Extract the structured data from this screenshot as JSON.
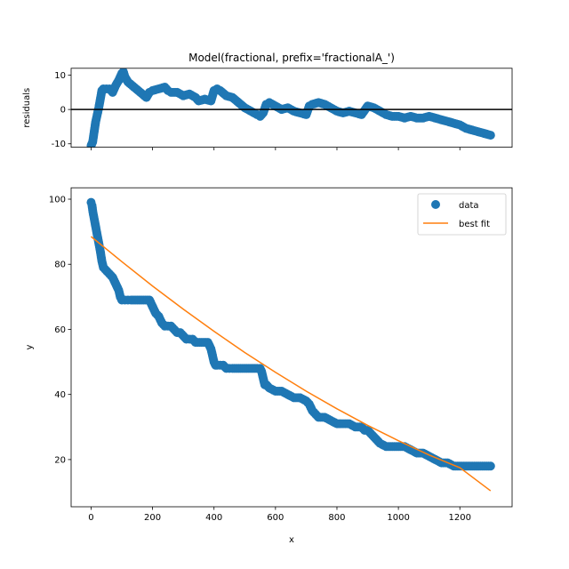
{
  "chart_data": [
    {
      "type": "scatter",
      "panel": "residuals",
      "title": "Model(fractional, prefix='fractionalA_')",
      "xlabel": "",
      "ylabel": "residuals",
      "xlim": [
        -65,
        1370
      ],
      "ylim": [
        -11,
        12
      ],
      "yticks": [
        -10,
        0,
        10
      ],
      "xticks": [
        0,
        200,
        400,
        600,
        800,
        1000,
        1200
      ],
      "show_xtick_labels": false,
      "grid": false,
      "zero_line": 0,
      "series": [
        {
          "color": "#1f77b4",
          "x": [
            0,
            5,
            10,
            15,
            20,
            25,
            30,
            35,
            40,
            50,
            60,
            70,
            80,
            90,
            100,
            105,
            110,
            120,
            140,
            160,
            180,
            190,
            200,
            220,
            240,
            250,
            260,
            280,
            300,
            320,
            340,
            350,
            370,
            390,
            400,
            410,
            420,
            440,
            460,
            480,
            500,
            520,
            540,
            550,
            560,
            570,
            580,
            600,
            620,
            640,
            660,
            680,
            700,
            710,
            720,
            740,
            760,
            780,
            800,
            820,
            840,
            860,
            880,
            900,
            920,
            940,
            960,
            980,
            1000,
            1020,
            1040,
            1060,
            1080,
            1100,
            1120,
            1140,
            1160,
            1180,
            1200,
            1220,
            1240,
            1260,
            1280,
            1300
          ],
          "y": [
            -10.5,
            -9.5,
            -6.5,
            -3.5,
            -1.5,
            0.5,
            3,
            5.5,
            6,
            6,
            6,
            5,
            7,
            8.5,
            10.5,
            11,
            9.5,
            8,
            6.5,
            5,
            3.5,
            5,
            5.5,
            6,
            6.5,
            5.5,
            5,
            5,
            4,
            4.5,
            3.5,
            2.5,
            3,
            2.5,
            5.5,
            6,
            5.5,
            4,
            3.5,
            2,
            0.5,
            -0.5,
            -1.5,
            -2,
            -1,
            1.5,
            2,
            1,
            0,
            0.5,
            -0.5,
            -1,
            -1.5,
            1,
            1.5,
            2,
            1.5,
            0.5,
            -0.5,
            -1,
            -0.5,
            -1,
            -1.5,
            1,
            0.5,
            -0.5,
            -1.5,
            -2,
            -2,
            -2.5,
            -2,
            -2.5,
            -2.5,
            -2,
            -2.5,
            -3,
            -3.5,
            -4,
            -4.5,
            -5.5,
            -6,
            -6.5,
            -7,
            -7.5
          ]
        }
      ]
    },
    {
      "type": "line",
      "panel": "fit",
      "title": "",
      "xlabel": "x",
      "ylabel": "y",
      "xlim": [
        -65,
        1370
      ],
      "ylim": [
        5.5,
        103.5
      ],
      "yticks": [
        20,
        40,
        60,
        80,
        100
      ],
      "xticks": [
        0,
        200,
        400,
        600,
        800,
        1000,
        1200
      ],
      "show_xtick_labels": true,
      "grid": false,
      "legend_position": "top-right",
      "series": [
        {
          "name": "data",
          "style": "markers",
          "color": "#1f77b4",
          "x": [
            0,
            3,
            6,
            10,
            14,
            18,
            22,
            26,
            30,
            35,
            40,
            50,
            60,
            70,
            80,
            90,
            95,
            100,
            110,
            120,
            130,
            150,
            170,
            190,
            195,
            200,
            205,
            210,
            220,
            230,
            240,
            250,
            260,
            270,
            280,
            290,
            300,
            310,
            320,
            330,
            340,
            360,
            380,
            390,
            395,
            400,
            405,
            410,
            420,
            430,
            440,
            450,
            460,
            480,
            500,
            520,
            540,
            550,
            555,
            560,
            565,
            570,
            580,
            600,
            620,
            640,
            660,
            680,
            700,
            710,
            720,
            730,
            740,
            760,
            780,
            800,
            820,
            840,
            860,
            880,
            890,
            900,
            910,
            920,
            940,
            960,
            980,
            1000,
            1020,
            1040,
            1060,
            1080,
            1100,
            1120,
            1140,
            1160,
            1180,
            1200,
            1220,
            1240,
            1260,
            1280,
            1300
          ],
          "y": [
            99,
            98,
            96,
            94,
            92,
            90,
            88,
            86,
            84,
            81,
            79,
            78,
            77,
            76,
            74,
            72,
            70,
            69,
            69,
            69,
            69,
            69,
            69,
            69,
            68,
            67,
            66,
            65,
            64,
            62,
            61,
            61,
            61,
            60,
            59,
            59,
            58,
            57,
            57,
            57,
            56,
            56,
            56,
            54,
            52,
            50,
            49,
            49,
            49,
            49,
            48,
            48,
            48,
            48,
            48,
            48,
            48,
            48,
            47,
            45,
            43,
            43,
            42,
            41,
            41,
            40,
            39,
            39,
            38,
            37,
            35,
            34,
            33,
            33,
            32,
            31,
            31,
            31,
            30,
            30,
            29,
            29,
            28,
            27,
            25,
            24,
            24,
            24,
            24,
            23,
            22,
            22,
            21,
            20,
            19,
            19,
            18,
            18,
            18,
            18,
            18,
            18,
            18
          ]
        },
        {
          "name": "best fit",
          "style": "line",
          "color": "#ff7f0e",
          "x": [
            0,
            100,
            200,
            300,
            400,
            500,
            600,
            700,
            800,
            900,
            1000,
            1100,
            1200,
            1300
          ],
          "y": [
            88.5,
            80.8,
            73.3,
            66.2,
            59.4,
            52.9,
            46.8,
            41.0,
            35.6,
            30.5,
            25.8,
            21.4,
            17.5,
            10.4
          ]
        }
      ]
    }
  ]
}
